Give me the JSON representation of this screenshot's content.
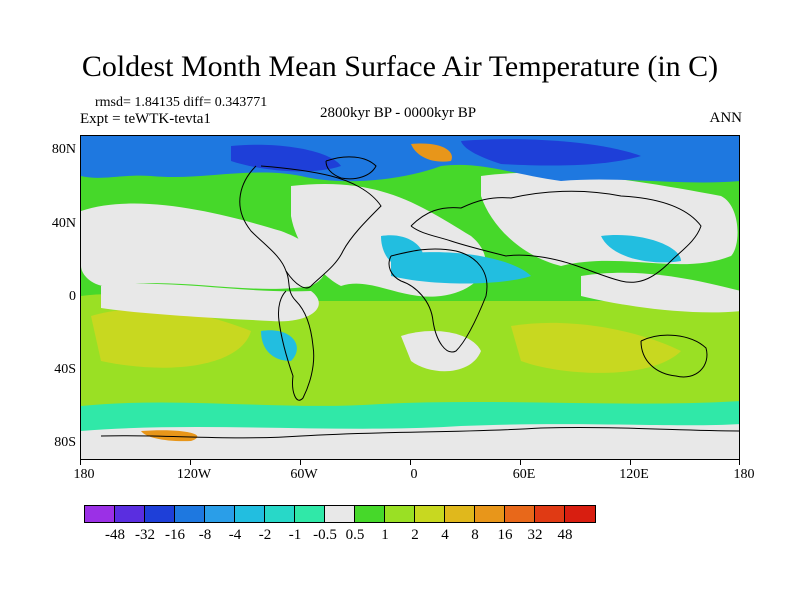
{
  "title": "Coldest Month Mean Surface Air Temperature (in C)",
  "stats_line": "rmsd= 1.84135  diff= 0.343771",
  "experiment_line": "Expt = teWTK-tevta1",
  "period": "2800kyr BP - 0000kyr BP",
  "season": "ANN",
  "lat_labels": [
    "80N",
    "40N",
    "0",
    "40S",
    "80S"
  ],
  "lon_labels": [
    "180",
    "120W",
    "60W",
    "0",
    "60E",
    "120E",
    "180"
  ],
  "colorbar": {
    "labels": [
      "-48",
      "-32",
      "-16",
      "-8",
      "-4",
      "-2",
      "-1",
      "-0.5",
      "0.5",
      "1",
      "2",
      "4",
      "8",
      "16",
      "32",
      "48"
    ],
    "colors": [
      "#9b30e6",
      "#5a2ee0",
      "#1e3fd8",
      "#1e78e0",
      "#2a9ee8",
      "#22bee0",
      "#28d8c8",
      "#30e8a8",
      "#e8e8e8",
      "#46d82a",
      "#9ae024",
      "#c8d820",
      "#e0b81c",
      "#e8961a",
      "#e8681a",
      "#e03a14",
      "#d81e10"
    ]
  },
  "palette": {
    "neutral": "#e8e8e8",
    "warm_light": "#46d82a",
    "warm_mid": "#9ae024",
    "warm_high": "#c8d820",
    "warm_strong": "#e0b81c",
    "hot": "#e8961a",
    "cool_light": "#30e8a8",
    "cool_mid": "#22bee0",
    "cool_strong": "#1e78e0",
    "cold": "#1e3fd8",
    "coast": "#000000"
  }
}
